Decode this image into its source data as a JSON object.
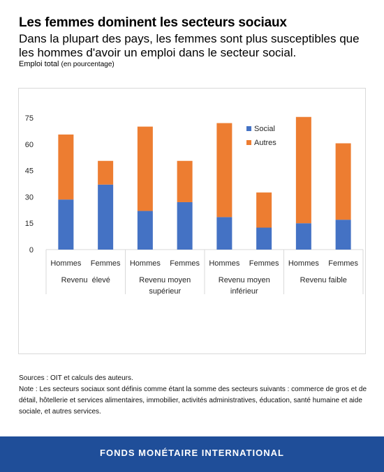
{
  "header": {
    "title": "Les femmes dominent les secteurs sociaux",
    "subtitle": "Dans la plupart des pays, les femmes sont plus susceptibles que les hommes d'avoir un emploi dans le secteur social.",
    "unit": "Emploi total",
    "unit_paren": "(en pourcentage)"
  },
  "chart_data": {
    "type": "bar",
    "stacked": true,
    "categories": [
      "Hommes",
      "Femmes",
      "Hommes",
      "Femmes",
      "Hommes",
      "Femmes",
      "Hommes",
      "Femmes"
    ],
    "groups": [
      {
        "label_lines": [
          "Revenu  élevé"
        ]
      },
      {
        "label_lines": [
          "Revenu moyen",
          "supérieur"
        ]
      },
      {
        "label_lines": [
          "Revenu moyen",
          "inférieur"
        ]
      },
      {
        "label_lines": [
          "Revenu faible"
        ]
      }
    ],
    "series": [
      {
        "name": "Social",
        "color": "#4472c4",
        "values": [
          28.5,
          37,
          22,
          27,
          18.5,
          12.5,
          15,
          17
        ]
      },
      {
        "name": "Autres",
        "color": "#ed7d31",
        "values": [
          37,
          13.5,
          48,
          23.5,
          53.5,
          20,
          60.5,
          43.5
        ]
      }
    ],
    "yticks": [
      0,
      15,
      30,
      45,
      60,
      75
    ],
    "ylim": [
      0,
      75
    ],
    "legend_position": "top-right",
    "grid": false
  },
  "notes": {
    "sources": "Sources : OIT et calculs des auteurs.",
    "note": "Note : Les secteurs sociaux sont définis comme étant la somme des secteurs suivants : commerce de gros et de détail, hôtellerie et services alimentaires, immobilier, activités administratives, éducation, santé humaine et aide sociale, et autres services."
  },
  "footer": {
    "org": "FONDS MONÉTAIRE INTERNATIONAL"
  }
}
